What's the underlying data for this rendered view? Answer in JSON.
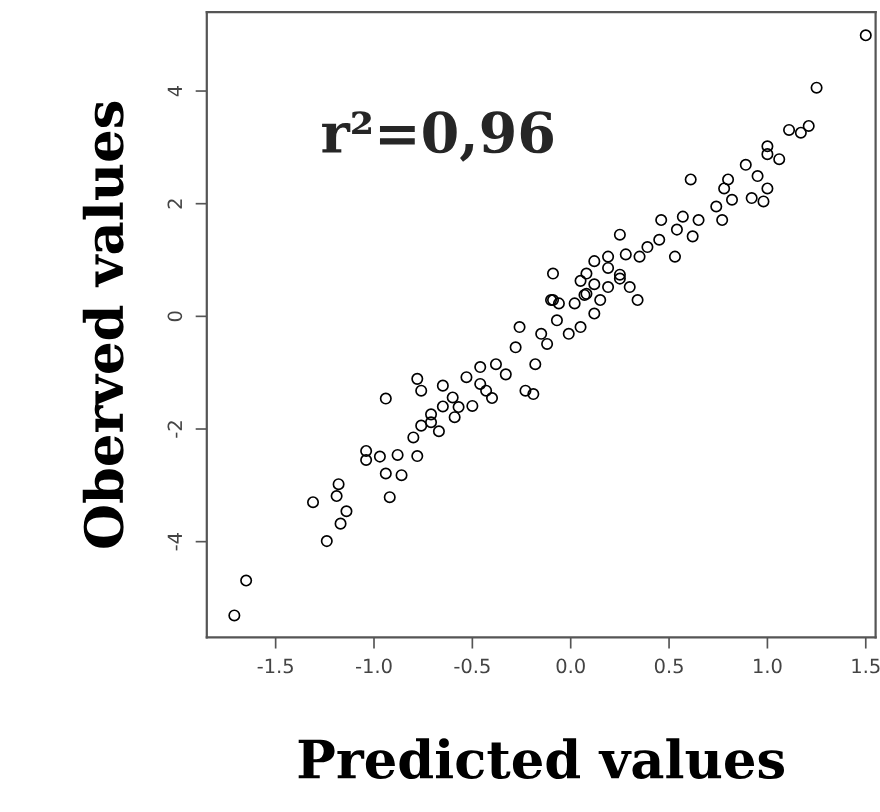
{
  "chart_data": {
    "type": "scatter",
    "xlabel": "Predicted values",
    "ylabel": "Oberved values",
    "annotations": [
      "r²=0,96"
    ],
    "xlim": [
      -1.85,
      1.55
    ],
    "ylim": [
      -5.7,
      5.4
    ],
    "xticks": [
      {
        "value": -1.5,
        "label": "-1.5"
      },
      {
        "value": -1.0,
        "label": "-1.0"
      },
      {
        "value": -0.5,
        "label": "-0.5"
      },
      {
        "value": 0.0,
        "label": "0.0"
      },
      {
        "value": 0.5,
        "label": "0.5"
      },
      {
        "value": 1.0,
        "label": "1.0"
      },
      {
        "value": 1.5,
        "label": "1.5"
      }
    ],
    "yticks": [
      -4,
      -2,
      0,
      2,
      4
    ],
    "marker": "circle",
    "grid": false,
    "series": [
      {
        "color": "#000000",
        "x": [
          -1.71,
          -1.65,
          -1.31,
          -1.24,
          -1.18,
          -1.19,
          -1.17,
          -1.14,
          -1.04,
          -1.04,
          -0.97,
          -0.94,
          -0.94,
          -0.92,
          -0.88,
          -0.86,
          -0.78,
          -0.76,
          -0.8,
          -0.78,
          -0.76,
          -0.71,
          -0.71,
          -0.67,
          -0.65,
          -0.65,
          -0.6,
          -0.59,
          -0.57,
          -0.53,
          -0.5,
          -0.46,
          -0.46,
          -0.43,
          -0.4,
          -0.38,
          -0.33,
          -0.28,
          -0.26,
          -0.23,
          -0.19,
          -0.18,
          -0.15,
          -0.12,
          -0.09,
          -0.07,
          -0.01,
          0.02,
          0.05,
          0.08,
          0.12,
          0.15,
          0.19,
          0.25,
          0.3,
          0.34,
          1.5,
          1.25,
          1.21,
          1.17,
          1.11,
          1.0,
          1.0,
          1.06,
          0.95,
          1.0,
          0.89,
          0.8,
          0.78,
          0.61,
          0.92,
          0.82,
          0.74,
          0.77,
          0.98,
          0.65,
          0.57,
          0.62,
          0.54,
          0.46,
          0.53,
          0.45,
          0.39,
          0.35,
          0.25,
          0.28,
          0.25,
          0.19,
          0.12,
          0.05,
          0.07,
          -0.09,
          -0.1,
          -0.06,
          0.12,
          0.19,
          0.08
        ],
        "values": [
          -5.31,
          -4.69,
          -3.3,
          -3.99,
          -2.98,
          -3.19,
          -3.68,
          -3.46,
          -2.39,
          -2.55,
          -2.49,
          -1.46,
          -2.79,
          -3.21,
          -2.46,
          -2.82,
          -1.11,
          -1.32,
          -2.15,
          -2.48,
          -1.94,
          -1.74,
          -1.88,
          -2.04,
          -1.23,
          -1.6,
          -1.44,
          -1.79,
          -1.61,
          -1.08,
          -1.59,
          -0.9,
          -1.2,
          -1.32,
          -1.45,
          -0.85,
          -1.03,
          -0.55,
          -0.19,
          -1.32,
          -1.38,
          -0.85,
          -0.31,
          -0.49,
          0.29,
          -0.07,
          -0.31,
          0.23,
          -0.19,
          0.4,
          0.05,
          0.29,
          0.52,
          0.67,
          0.52,
          0.29,
          4.99,
          4.06,
          3.38,
          3.26,
          3.31,
          3.02,
          2.88,
          2.79,
          2.49,
          2.27,
          2.69,
          2.43,
          2.27,
          2.43,
          2.1,
          2.07,
          1.95,
          1.71,
          2.04,
          1.71,
          1.77,
          1.42,
          1.54,
          1.71,
          1.06,
          1.36,
          1.23,
          1.06,
          1.45,
          1.1,
          0.74,
          1.06,
          0.57,
          0.63,
          0.38,
          0.76,
          0.29,
          0.23,
          0.98,
          0.86,
          0.76
        ]
      }
    ]
  }
}
